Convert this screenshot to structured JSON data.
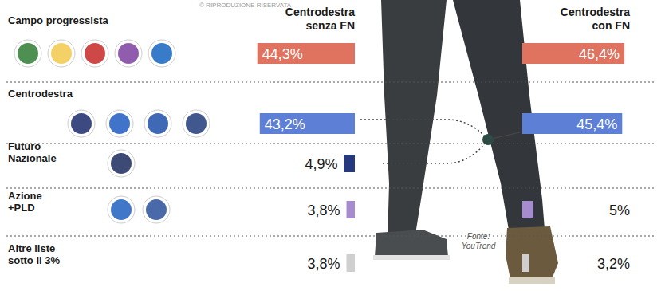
{
  "chart_data": {
    "type": "bar",
    "orientation": "horizontal",
    "copyright": "© RIPRODUZIONE RISERVATA",
    "source": "Fonte: YouTrend",
    "categories": [
      "Campo progressista",
      "Centrodestra",
      "Futuro Nazionale",
      "Azione +PLD",
      "Altre liste sotto il 3%"
    ],
    "colors": [
      "#e0735f",
      "#5d80d6",
      "#26397f",
      "#a68ccf",
      "#cfcfcf"
    ],
    "series": [
      {
        "name": "Centrodestra senza FN",
        "values": [
          44.3,
          43.2,
          4.9,
          3.8,
          3.8
        ],
        "value_labels": [
          "44,3%",
          "43,2%",
          "4,9%",
          "3,8%",
          "3,8%"
        ]
      },
      {
        "name": "Centrodestra con FN",
        "values": [
          46.4,
          45.4,
          null,
          5,
          3.2
        ],
        "value_labels": [
          "46,4%",
          "45,4%",
          null,
          "5%",
          "3,2%"
        ]
      }
    ],
    "xlim": [
      0,
      50
    ],
    "tick_labels": false,
    "grid": false,
    "data_labels": true
  }
}
